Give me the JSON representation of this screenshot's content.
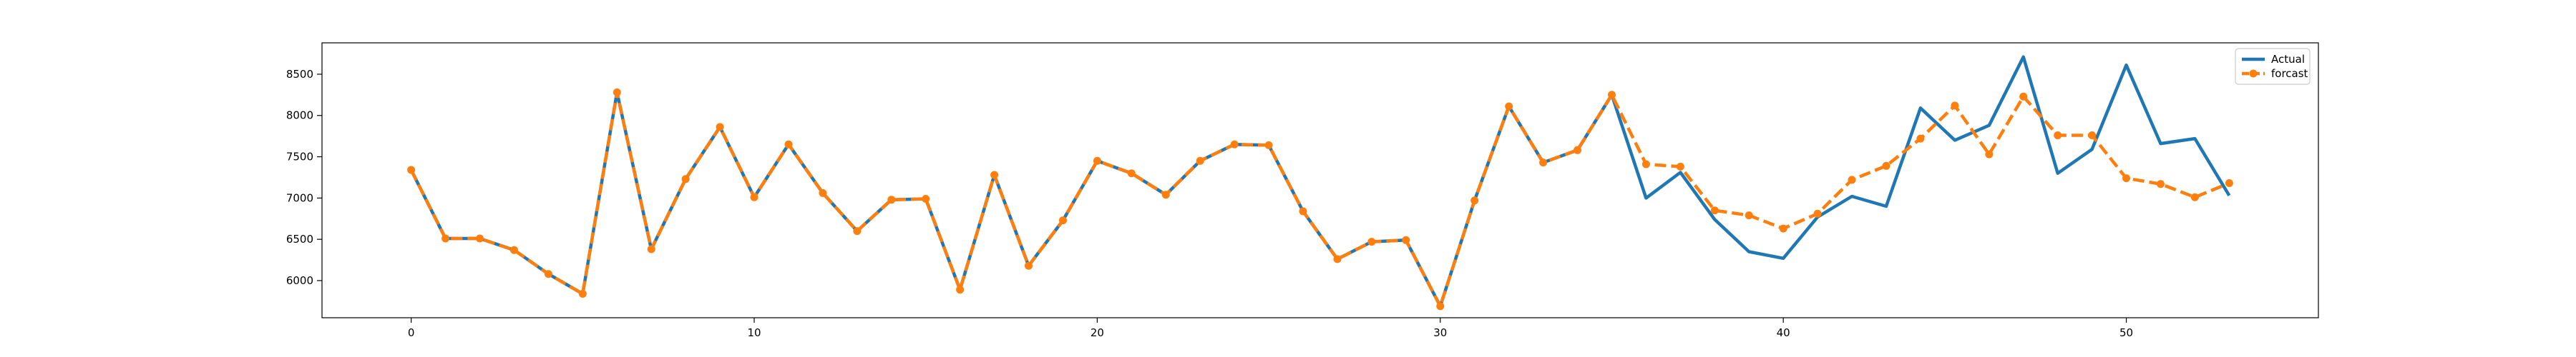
{
  "chart_data": {
    "type": "line",
    "title": "",
    "xlabel": "",
    "ylabel": "",
    "xlim": [
      -2.6,
      55.6
    ],
    "ylim": [
      5550,
      8880
    ],
    "xticks": [
      0,
      10,
      20,
      30,
      40,
      50
    ],
    "yticks": [
      6000,
      6500,
      7000,
      7500,
      8000,
      8500
    ],
    "grid": false,
    "legend_position": "top-right",
    "series": [
      {
        "name": "Actual",
        "color": "#1f77b4",
        "style": "solid",
        "marker": "none",
        "x": [
          0,
          1,
          2,
          3,
          4,
          5,
          6,
          7,
          8,
          9,
          10,
          11,
          12,
          13,
          14,
          15,
          16,
          17,
          18,
          19,
          20,
          21,
          22,
          23,
          24,
          25,
          26,
          27,
          28,
          29,
          30,
          31,
          32,
          33,
          34,
          35,
          36,
          37,
          38,
          39,
          40,
          41,
          42,
          43,
          44,
          45,
          46,
          47,
          48,
          49,
          50,
          51,
          52,
          53
        ],
        "values": [
          7340,
          6510,
          6510,
          6370,
          6080,
          5840,
          8280,
          6380,
          7230,
          7860,
          7010,
          7650,
          7060,
          6600,
          6980,
          6990,
          5890,
          7280,
          6180,
          6730,
          7450,
          7300,
          7040,
          7450,
          7650,
          7640,
          6840,
          6260,
          6470,
          6490,
          5690,
          6970,
          8110,
          7430,
          7580,
          8250,
          7000,
          7310,
          6740,
          6350,
          6270,
          6770,
          7020,
          6900,
          8090,
          7700,
          7880,
          8710,
          7300,
          7590,
          8610,
          7660,
          7720,
          7030
        ]
      },
      {
        "name": "forcast",
        "color": "#ff7f0e",
        "style": "dashed",
        "marker": "circle",
        "x": [
          0,
          1,
          2,
          3,
          4,
          5,
          6,
          7,
          8,
          9,
          10,
          11,
          12,
          13,
          14,
          15,
          16,
          17,
          18,
          19,
          20,
          21,
          22,
          23,
          24,
          25,
          26,
          27,
          28,
          29,
          30,
          31,
          32,
          33,
          34,
          35,
          36,
          37,
          38,
          39,
          40,
          41,
          42,
          43,
          44,
          45,
          46,
          47,
          48,
          49,
          50,
          51,
          52,
          53
        ],
        "values": [
          7340,
          6510,
          6510,
          6370,
          6080,
          5840,
          8280,
          6380,
          7230,
          7860,
          7010,
          7650,
          7060,
          6600,
          6980,
          6990,
          5890,
          7280,
          6180,
          6730,
          7450,
          7300,
          7040,
          7450,
          7650,
          7640,
          6840,
          6260,
          6470,
          6490,
          5690,
          6970,
          8110,
          7430,
          7580,
          8250,
          7410,
          7380,
          6850,
          6790,
          6630,
          6810,
          7220,
          7390,
          7720,
          8120,
          7530,
          8230,
          7760,
          7760,
          7240,
          7170,
          7010,
          7180
        ]
      }
    ]
  }
}
